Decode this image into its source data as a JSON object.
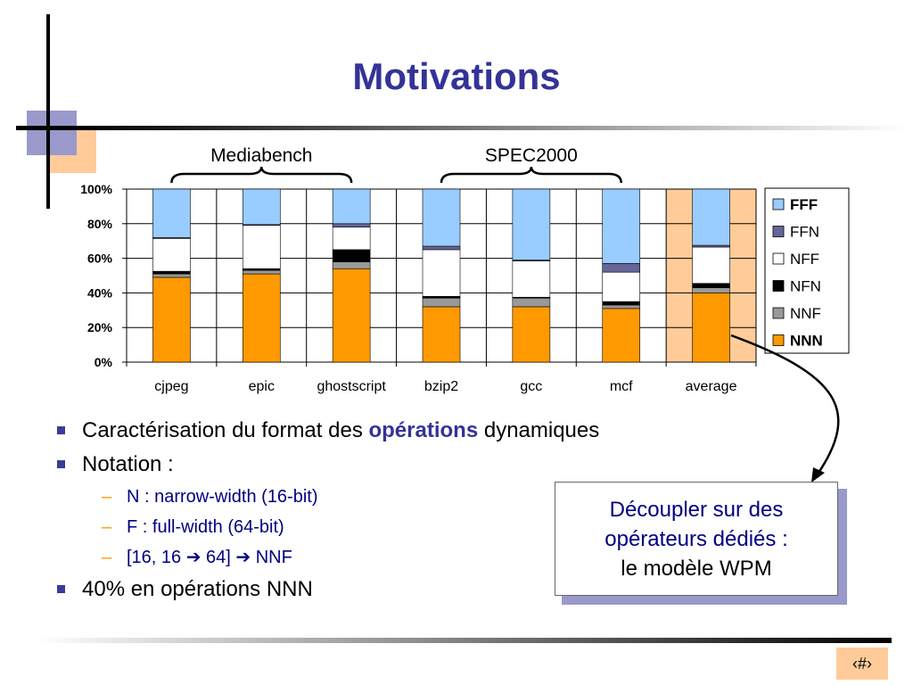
{
  "slide": {
    "title": "Motivations",
    "page_number": "‹#›"
  },
  "chart_data": {
    "type": "bar",
    "stacked": true,
    "categories": [
      "cjpeg",
      "epic",
      "ghostscript",
      "bzip2",
      "gcc",
      "mcf",
      "average"
    ],
    "highlighted_category": "average",
    "ylim": [
      0,
      100
    ],
    "yticks": [
      "0%",
      "20%",
      "40%",
      "60%",
      "80%",
      "100%"
    ],
    "xlabel": "",
    "ylabel": "",
    "groups": [
      {
        "label": "Mediabench",
        "from": "cjpeg",
        "to": "ghostscript"
      },
      {
        "label": "SPEC2000",
        "from": "bzip2",
        "to": "mcf"
      }
    ],
    "series": [
      {
        "name": "NNN",
        "color": "#ff9900",
        "bold": true,
        "values": [
          49,
          51,
          54,
          32,
          32,
          31,
          40
        ]
      },
      {
        "name": "NNF",
        "color": "#999999",
        "bold": false,
        "values": [
          2,
          2,
          4,
          5,
          5,
          2,
          3
        ]
      },
      {
        "name": "NFN",
        "color": "#000000",
        "bold": false,
        "values": [
          1.5,
          1,
          7,
          1,
          0.5,
          2,
          2.5
        ]
      },
      {
        "name": "NFF",
        "color": "#ffffff",
        "bold": false,
        "values": [
          19,
          25,
          13,
          27,
          21,
          17,
          21
        ]
      },
      {
        "name": "FFN",
        "color": "#666699",
        "bold": false,
        "values": [
          0.5,
          0.5,
          2,
          2,
          0.5,
          5,
          1
        ]
      },
      {
        "name": "FFF",
        "color": "#99ccff",
        "bold": true,
        "values": [
          28,
          20.5,
          20,
          33,
          41,
          43,
          32.5
        ]
      }
    ],
    "legend_position": "right",
    "grid": true
  },
  "bullets": {
    "b1_before": "Caractérisation du format des ",
    "b1_highlight": "opérations",
    "b1_after": " dynamiques",
    "b2": "Notation :",
    "sub1": "N : narrow-width (16-bit)",
    "sub2": "F : full-width (64-bit)",
    "sub3_a": "[16, 16 ",
    "sub3_arrow1": "➔",
    "sub3_b": " 64] ",
    "sub3_arrow2": "➔",
    "sub3_c": " NNF",
    "sub_dash": "–",
    "b3": "40% en opérations NNN"
  },
  "callout": {
    "line1": "Découpler sur des",
    "line2": "opérateurs dédiés :",
    "line3": "le modèle WPM"
  }
}
